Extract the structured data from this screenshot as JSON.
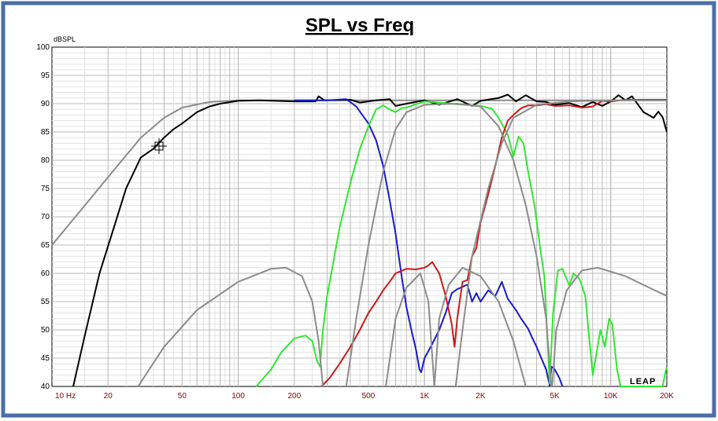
{
  "window": {
    "frame_color": "#4a6fa5"
  },
  "chart_data": {
    "type": "line",
    "title": "SPL vs Freq",
    "ylabel": "dBSPL",
    "xlabel": "",
    "x_scale": "log",
    "xlim": [
      10,
      20000
    ],
    "ylim": [
      40,
      100
    ],
    "grid": true,
    "x_ticks": [
      {
        "v": 10,
        "label": "10  Hz"
      },
      {
        "v": 20,
        "label": "20"
      },
      {
        "v": 50,
        "label": "50"
      },
      {
        "v": 100,
        "label": "100"
      },
      {
        "v": 200,
        "label": "200"
      },
      {
        "v": 500,
        "label": "500"
      },
      {
        "v": 1000,
        "label": "1K"
      },
      {
        "v": 2000,
        "label": "2K"
      },
      {
        "v": 5000,
        "label": "5K"
      },
      {
        "v": 10000,
        "label": "10K"
      },
      {
        "v": 20000,
        "label": "20K"
      }
    ],
    "y_ticks": [
      40,
      45,
      50,
      55,
      60,
      65,
      70,
      75,
      80,
      85,
      90,
      95,
      100
    ],
    "watermark": "LEAP",
    "colors": {
      "black": "#000000",
      "gray": "#8c8c8c",
      "blue": "#1a1acc",
      "green": "#33e633",
      "red": "#cc1a1a"
    },
    "series": [
      {
        "color": "gray",
        "points": [
          [
            10,
            65
          ],
          [
            15,
            72
          ],
          [
            20,
            77
          ],
          [
            30,
            84
          ],
          [
            40,
            87.5
          ],
          [
            50,
            89.3
          ],
          [
            70,
            90.3
          ],
          [
            100,
            90.6
          ],
          [
            200,
            90.6
          ],
          [
            500,
            90.6
          ],
          [
            1000,
            90.6
          ],
          [
            2000,
            90.6
          ],
          [
            5000,
            90.6
          ],
          [
            10000,
            90.6
          ],
          [
            20000,
            90.6
          ]
        ]
      },
      {
        "color": "black",
        "points": [
          [
            13,
            40
          ],
          [
            15,
            49
          ],
          [
            18,
            60
          ],
          [
            21,
            67
          ],
          [
            25,
            75
          ],
          [
            30,
            80.5
          ],
          [
            35,
            82
          ],
          [
            40,
            84
          ],
          [
            45,
            85.5
          ],
          [
            50,
            86.5
          ],
          [
            60,
            88.5
          ],
          [
            70,
            89.5
          ],
          [
            80,
            90
          ],
          [
            100,
            90.5
          ],
          [
            130,
            90.6
          ],
          [
            200,
            90.4
          ],
          [
            260,
            90.4
          ],
          [
            270,
            91.3
          ],
          [
            290,
            90.6
          ],
          [
            400,
            90.7
          ],
          [
            450,
            90.2
          ],
          [
            550,
            90.6
          ],
          [
            650,
            90.8
          ],
          [
            700,
            89.6
          ],
          [
            800,
            90
          ],
          [
            1000,
            90.6
          ],
          [
            1200,
            89.8
          ],
          [
            1500,
            90.8
          ],
          [
            1800,
            89.6
          ],
          [
            2000,
            90.5
          ],
          [
            2500,
            91
          ],
          [
            2800,
            91.6
          ],
          [
            3100,
            90.4
          ],
          [
            3500,
            91.5
          ],
          [
            4000,
            90.4
          ],
          [
            4500,
            90.3
          ],
          [
            5000,
            89.8
          ],
          [
            6000,
            90.1
          ],
          [
            7000,
            89.4
          ],
          [
            8000,
            90.3
          ],
          [
            9000,
            89.6
          ],
          [
            10000,
            90.4
          ],
          [
            11000,
            91.5
          ],
          [
            12000,
            90.6
          ],
          [
            13000,
            91.3
          ],
          [
            15000,
            88.5
          ],
          [
            17000,
            87.5
          ],
          [
            18000,
            88.6
          ],
          [
            19000,
            87.6
          ],
          [
            20000,
            85
          ]
        ]
      },
      {
        "color": "blue",
        "points": [
          [
            200,
            90.6
          ],
          [
            300,
            90.6
          ],
          [
            380,
            90.8
          ],
          [
            430,
            89.5
          ],
          [
            500,
            86.5
          ],
          [
            550,
            83.5
          ],
          [
            600,
            79
          ],
          [
            650,
            73
          ],
          [
            700,
            67
          ],
          [
            750,
            60
          ],
          [
            800,
            54
          ],
          [
            850,
            50
          ],
          [
            900,
            46.5
          ],
          [
            940,
            43
          ],
          [
            960,
            42.5
          ],
          [
            1000,
            45
          ],
          [
            1100,
            47.5
          ],
          [
            1200,
            50
          ],
          [
            1300,
            53
          ],
          [
            1400,
            56.5
          ],
          [
            1500,
            57.2
          ],
          [
            1700,
            58
          ],
          [
            1800,
            55
          ],
          [
            1900,
            56.5
          ],
          [
            2000,
            55
          ],
          [
            2200,
            57
          ],
          [
            2400,
            56
          ],
          [
            2600,
            58.5
          ],
          [
            2800,
            55.5
          ],
          [
            3100,
            53.5
          ],
          [
            3300,
            52
          ],
          [
            3600,
            50.2
          ],
          [
            3800,
            48.5
          ],
          [
            4000,
            47
          ],
          [
            4300,
            44.5
          ],
          [
            4500,
            43
          ],
          [
            4700,
            40.2
          ],
          [
            4800,
            43.5
          ],
          [
            5000,
            43
          ],
          [
            5300,
            41.5
          ],
          [
            5500,
            40
          ]
        ]
      },
      {
        "color": "green",
        "points": [
          [
            125,
            40
          ],
          [
            150,
            43
          ],
          [
            170,
            46
          ],
          [
            200,
            48.5
          ],
          [
            230,
            49
          ],
          [
            250,
            48
          ],
          [
            265,
            44.5
          ],
          [
            275,
            43.5
          ],
          [
            285,
            50
          ],
          [
            300,
            56
          ],
          [
            350,
            68
          ],
          [
            400,
            76
          ],
          [
            450,
            82
          ],
          [
            500,
            86
          ],
          [
            550,
            89
          ],
          [
            600,
            89.7
          ],
          [
            650,
            89
          ],
          [
            700,
            88.5
          ],
          [
            750,
            89.2
          ],
          [
            800,
            89.3
          ],
          [
            1000,
            90.4
          ],
          [
            1200,
            90.2
          ],
          [
            1500,
            89.9
          ],
          [
            2000,
            89.6
          ],
          [
            2300,
            89.1
          ],
          [
            2500,
            87.5
          ],
          [
            2700,
            85.5
          ],
          [
            2800,
            84.5
          ],
          [
            3000,
            80.7
          ],
          [
            3200,
            84.2
          ],
          [
            3400,
            83
          ],
          [
            3600,
            78
          ],
          [
            3900,
            72
          ],
          [
            4200,
            64
          ],
          [
            4400,
            59.5
          ],
          [
            4700,
            40.5
          ],
          [
            4900,
            53
          ],
          [
            5200,
            60.5
          ],
          [
            5500,
            60.8
          ],
          [
            6000,
            57.8
          ],
          [
            6300,
            60
          ],
          [
            6800,
            59
          ],
          [
            7300,
            56
          ],
          [
            7800,
            46
          ],
          [
            8000,
            42
          ],
          [
            8300,
            45
          ],
          [
            8800,
            50
          ],
          [
            9300,
            47
          ],
          [
            9800,
            52
          ],
          [
            10200,
            51
          ],
          [
            10800,
            43
          ],
          [
            11300,
            40
          ],
          [
            19000,
            40
          ],
          [
            19500,
            42
          ],
          [
            20000,
            43.5
          ]
        ]
      },
      {
        "color": "red",
        "points": [
          [
            280,
            40
          ],
          [
            310,
            41.5
          ],
          [
            350,
            44
          ],
          [
            400,
            47
          ],
          [
            450,
            50
          ],
          [
            500,
            53
          ],
          [
            550,
            55
          ],
          [
            600,
            57
          ],
          [
            650,
            58.5
          ],
          [
            700,
            60
          ],
          [
            800,
            60.8
          ],
          [
            900,
            60.7
          ],
          [
            1000,
            61
          ],
          [
            1050,
            61.4
          ],
          [
            1100,
            62
          ],
          [
            1150,
            61
          ],
          [
            1200,
            60
          ],
          [
            1300,
            56
          ],
          [
            1400,
            51
          ],
          [
            1450,
            47
          ],
          [
            1500,
            52
          ],
          [
            1600,
            58.5
          ],
          [
            1700,
            58.8
          ],
          [
            1800,
            63
          ],
          [
            1900,
            64.5
          ],
          [
            2000,
            69
          ],
          [
            2200,
            74
          ],
          [
            2400,
            79
          ],
          [
            2600,
            84
          ],
          [
            2800,
            87
          ],
          [
            3000,
            88
          ],
          [
            3300,
            89.2
          ],
          [
            3600,
            89.7
          ],
          [
            4000,
            89.7
          ],
          [
            4500,
            89.9
          ],
          [
            5000,
            89.6
          ],
          [
            6000,
            89.7
          ],
          [
            7000,
            89.3
          ],
          [
            8000,
            89.5
          ],
          [
            9000,
            90.5
          ],
          [
            10000,
            90.4
          ],
          [
            12000,
            90.7
          ],
          [
            20000,
            90.7
          ]
        ]
      },
      {
        "color": "gray",
        "points": [
          [
            29,
            40
          ],
          [
            40,
            47
          ],
          [
            60,
            53.5
          ],
          [
            100,
            58.5
          ],
          [
            150,
            60.8
          ],
          [
            180,
            61
          ],
          [
            220,
            59.5
          ],
          [
            250,
            55
          ],
          [
            270,
            48
          ],
          [
            285,
            40
          ]
        ]
      },
      {
        "color": "gray",
        "points": [
          [
            380,
            40
          ],
          [
            430,
            52
          ],
          [
            500,
            65
          ],
          [
            600,
            78
          ],
          [
            700,
            85.5
          ],
          [
            800,
            88.5
          ],
          [
            1000,
            89.8
          ],
          [
            1500,
            90
          ],
          [
            2000,
            89.5
          ],
          [
            2500,
            86
          ],
          [
            3000,
            80
          ],
          [
            3500,
            72
          ],
          [
            4000,
            63
          ],
          [
            4500,
            52
          ],
          [
            4800,
            40
          ]
        ]
      },
      {
        "color": "gray",
        "points": [
          [
            620,
            40
          ],
          [
            700,
            52
          ],
          [
            800,
            57.5
          ],
          [
            950,
            60
          ],
          [
            1050,
            55
          ],
          [
            1130,
            40
          ]
        ]
      },
      {
        "color": "gray",
        "points": [
          [
            1130,
            40
          ],
          [
            1200,
            52
          ],
          [
            1350,
            58
          ],
          [
            1600,
            61
          ],
          [
            2000,
            59.5
          ],
          [
            2500,
            55
          ],
          [
            3000,
            48
          ],
          [
            3500,
            40
          ]
        ]
      },
      {
        "color": "gray",
        "points": [
          [
            1470,
            40
          ],
          [
            1600,
            50
          ],
          [
            1800,
            63
          ],
          [
            2200,
            75
          ],
          [
            2600,
            83
          ],
          [
            3000,
            87.5
          ],
          [
            4000,
            89.8
          ],
          [
            6000,
            90.4
          ],
          [
            10000,
            90.6
          ],
          [
            20000,
            90.6
          ]
        ]
      },
      {
        "color": "gray",
        "points": [
          [
            4850,
            40
          ],
          [
            5100,
            50
          ],
          [
            5800,
            57
          ],
          [
            7000,
            60.5
          ],
          [
            8500,
            61
          ],
          [
            12000,
            59.5
          ],
          [
            16000,
            57.5
          ],
          [
            20000,
            56
          ]
        ]
      }
    ]
  }
}
